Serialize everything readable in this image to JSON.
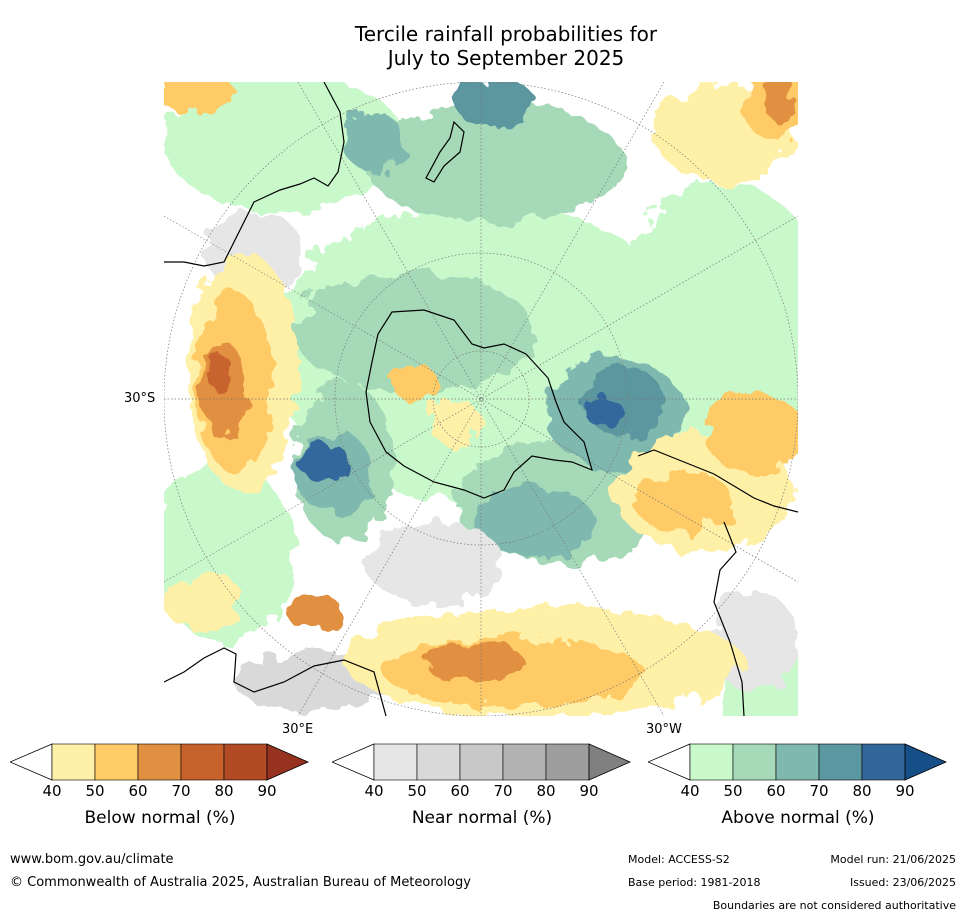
{
  "title": {
    "line1": "Tercile rainfall probabilities for",
    "line2": "July to September 2025"
  },
  "map": {
    "lat_label": "30°S",
    "lon_labels": [
      "30°E",
      "30°W"
    ],
    "colors": {
      "below": [
        "#fff0a8",
        "#fecb66",
        "#e09040",
        "#c8622d",
        "#b14a25",
        "#973220"
      ],
      "near": [
        "#e6e6e6",
        "#d9d9d9",
        "#c8c8c8",
        "#b3b3b3",
        "#9e9e9e",
        "#808080"
      ],
      "above": [
        "#c9f8cb",
        "#a6d9b8",
        "#7fb8ae",
        "#5b97a0",
        "#33679b",
        "#164e88"
      ]
    }
  },
  "colorbars": [
    {
      "name": "below",
      "title": "Below normal (%)",
      "ticks": [
        "40",
        "50",
        "60",
        "70",
        "80",
        "90"
      ]
    },
    {
      "name": "near",
      "title": "Near normal (%)",
      "ticks": [
        "40",
        "50",
        "60",
        "70",
        "80",
        "90"
      ]
    },
    {
      "name": "above",
      "title": "Above normal (%)",
      "ticks": [
        "40",
        "50",
        "60",
        "70",
        "80",
        "90"
      ]
    }
  ],
  "footer": {
    "url": "www.bom.gov.au/climate",
    "copyright": "© Commonwealth of Australia 2025, Australian Bureau of Meteorology",
    "model": "Model: ACCESS-S2",
    "model_run": "Model run: 21/06/2025",
    "base_period": "Base period: 1981-2018",
    "issued": "Issued: 23/06/2025",
    "disclaimer": "Boundaries are not considered authoritative"
  }
}
